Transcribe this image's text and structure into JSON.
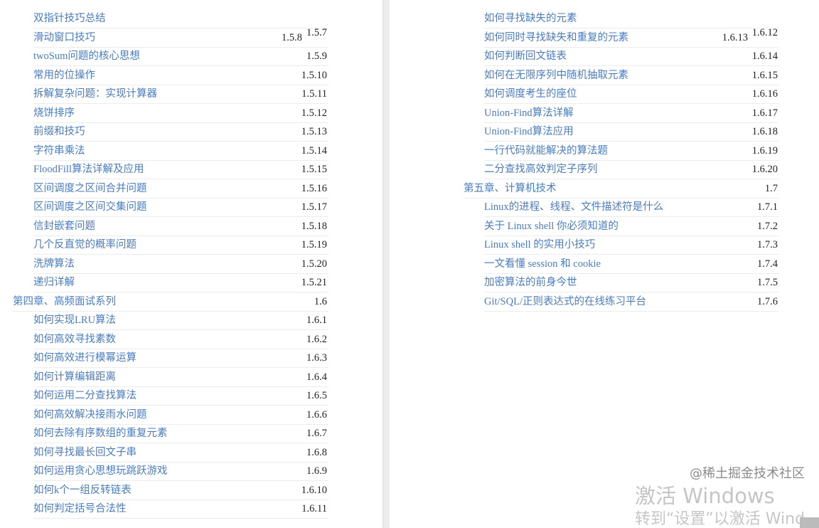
{
  "left": [
    {
      "title": "双指针技巧总结",
      "num": "",
      "level": 2
    },
    {
      "title": "滑动窗口技巧",
      "num": "1.5.8",
      "num_extra": "1.5.7",
      "level": 2
    },
    {
      "title": "twoSum问题的核心思想",
      "num": "1.5.9",
      "level": 2
    },
    {
      "title": "常用的位操作",
      "num": "1.5.10",
      "level": 2
    },
    {
      "title": "拆解复杂问题：实现计算器",
      "num": "1.5.11",
      "level": 2
    },
    {
      "title": "烧饼排序",
      "num": "1.5.12",
      "level": 2
    },
    {
      "title": "前缀和技巧",
      "num": "1.5.13",
      "level": 2
    },
    {
      "title": "字符串乘法",
      "num": "1.5.14",
      "level": 2
    },
    {
      "title": "FloodFill算法详解及应用",
      "num": "1.5.15",
      "level": 2
    },
    {
      "title": "区间调度之区间合并问题",
      "num": "1.5.16",
      "level": 2
    },
    {
      "title": "区间调度之区间交集问题",
      "num": "1.5.17",
      "level": 2
    },
    {
      "title": "信封嵌套问题",
      "num": "1.5.18",
      "level": 2
    },
    {
      "title": "几个反直觉的概率问题",
      "num": "1.5.19",
      "level": 2
    },
    {
      "title": "洗牌算法",
      "num": "1.5.20",
      "level": 2
    },
    {
      "title": "递归详解",
      "num": "1.5.21",
      "level": 2
    },
    {
      "title": "第四章、高频面试系列",
      "num": "1.6",
      "level": 1
    },
    {
      "title": "如何实现LRU算法",
      "num": "1.6.1",
      "level": 2
    },
    {
      "title": "如何高效寻找素数",
      "num": "1.6.2",
      "level": 2
    },
    {
      "title": "如何高效进行模幂运算",
      "num": "1.6.3",
      "level": 2
    },
    {
      "title": "如何计算编辑距离",
      "num": "1.6.4",
      "level": 2
    },
    {
      "title": "如何运用二分查找算法",
      "num": "1.6.5",
      "level": 2
    },
    {
      "title": "如何高效解决接雨水问题",
      "num": "1.6.6",
      "level": 2
    },
    {
      "title": "如何去除有序数组的重复元素",
      "num": "1.6.7",
      "level": 2
    },
    {
      "title": "如何寻找最长回文子串",
      "num": "1.6.8",
      "level": 2
    },
    {
      "title": "如何运用贪心思想玩跳跃游戏",
      "num": "1.6.9",
      "level": 2
    },
    {
      "title": "如何k个一组反转链表",
      "num": "1.6.10",
      "level": 2
    },
    {
      "title": "如何判定括号合法性",
      "num": "1.6.11",
      "level": 2
    }
  ],
  "right": [
    {
      "title": "如何寻找缺失的元素",
      "num": "",
      "level": 2
    },
    {
      "title": "如何同时寻找缺失和重复的元素",
      "num": "1.6.13",
      "num_extra": "1.6.12",
      "level": 2
    },
    {
      "title": "如何判断回文链表",
      "num": "1.6.14",
      "level": 2
    },
    {
      "title": "如何在无限序列中随机抽取元素",
      "num": "1.6.15",
      "level": 2
    },
    {
      "title": "如何调度考生的座位",
      "num": "1.6.16",
      "level": 2
    },
    {
      "title": "Union-Find算法详解",
      "num": "1.6.17",
      "level": 2
    },
    {
      "title": "Union-Find算法应用",
      "num": "1.6.18",
      "level": 2
    },
    {
      "title": "一行代码就能解决的算法题",
      "num": "1.6.19",
      "level": 2
    },
    {
      "title": "二分查找高效判定子序列",
      "num": "1.6.20",
      "level": 2
    },
    {
      "title": "第五章、计算机技术",
      "num": "1.7",
      "level": 1
    },
    {
      "title": "Linux的进程、线程、文件描述符是什么",
      "num": "1.7.1",
      "level": 2
    },
    {
      "title": "关于 Linux shell 你必须知道的",
      "num": "1.7.2",
      "level": 2
    },
    {
      "title": "Linux shell 的实用小技巧",
      "num": "1.7.3",
      "level": 2
    },
    {
      "title": "一文看懂 session 和 cookie",
      "num": "1.7.4",
      "level": 2
    },
    {
      "title": "加密算法的前身今世",
      "num": "1.7.5",
      "level": 2
    },
    {
      "title": "Git/SQL/正则表达式的在线练习平台",
      "num": "1.7.6",
      "level": 2
    }
  ],
  "watermark": {
    "line1": "激活 Windows",
    "line2": "转到“设置”以激活 Wind",
    "credit": "@稀土掘金技术社区"
  },
  "colors": {
    "link": "#4a7cc0",
    "text": "#222222"
  }
}
